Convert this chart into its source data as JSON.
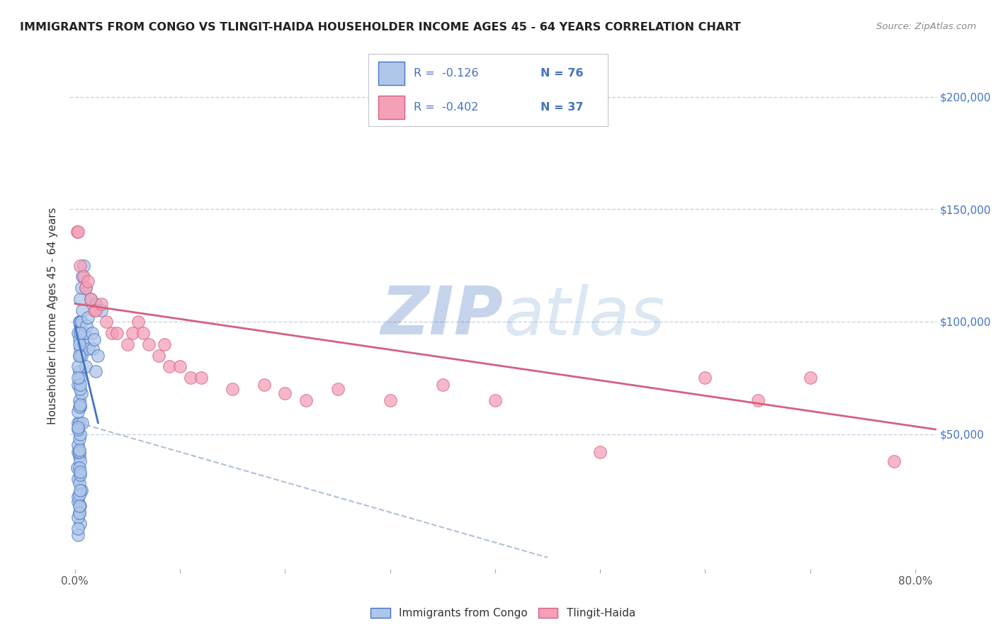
{
  "title": "IMMIGRANTS FROM CONGO VS TLINGIT-HAIDA HOUSEHOLDER INCOME AGES 45 - 64 YEARS CORRELATION CHART",
  "source": "Source: ZipAtlas.com",
  "ylabel": "Householder Income Ages 45 - 64 years",
  "y_tick_values": [
    50000,
    100000,
    150000,
    200000
  ],
  "legend_blue_label": "Immigrants from Congo",
  "legend_pink_label": "Tlingit-Haida",
  "blue_color": "#aec6e8",
  "pink_color": "#f4a0b8",
  "blue_line_color": "#4472c4",
  "pink_line_color": "#d46080",
  "dashed_line_color": "#b0c0d8",
  "watermark_color": "#c8d8ef",
  "background_color": "#ffffff",
  "xlim": [
    -0.005,
    0.82
  ],
  "ylim": [
    -10000,
    215000
  ],
  "blue_scatter_x": [
    0.002,
    0.003,
    0.003,
    0.003,
    0.003,
    0.003,
    0.004,
    0.004,
    0.004,
    0.004,
    0.004,
    0.004,
    0.004,
    0.004,
    0.005,
    0.005,
    0.005,
    0.005,
    0.005,
    0.005,
    0.005,
    0.006,
    0.006,
    0.006,
    0.006,
    0.007,
    0.007,
    0.007,
    0.008,
    0.008,
    0.009,
    0.01,
    0.01,
    0.011,
    0.012,
    0.013,
    0.015,
    0.016,
    0.017,
    0.018,
    0.02,
    0.02,
    0.022,
    0.025,
    0.005,
    0.003,
    0.004,
    0.006,
    0.004,
    0.003,
    0.005,
    0.004,
    0.003,
    0.005,
    0.003,
    0.004,
    0.003,
    0.005,
    0.004,
    0.003,
    0.004,
    0.005,
    0.003,
    0.004,
    0.005,
    0.004,
    0.003,
    0.005,
    0.003,
    0.004,
    0.005,
    0.003,
    0.004,
    0.005,
    0.003,
    0.004
  ],
  "blue_scatter_y": [
    35000,
    95000,
    72000,
    55000,
    45000,
    30000,
    100000,
    92000,
    85000,
    78000,
    65000,
    55000,
    48000,
    40000,
    110000,
    100000,
    88000,
    75000,
    62000,
    50000,
    38000,
    115000,
    100000,
    85000,
    68000,
    120000,
    105000,
    55000,
    125000,
    90000,
    95000,
    115000,
    80000,
    98000,
    102000,
    88000,
    110000,
    95000,
    88000,
    92000,
    108000,
    78000,
    85000,
    105000,
    10000,
    20000,
    15000,
    25000,
    35000,
    42000,
    18000,
    28000,
    60000,
    70000,
    80000,
    90000,
    22000,
    32000,
    42000,
    52000,
    62000,
    72000,
    13000,
    23000,
    33000,
    43000,
    53000,
    63000,
    5000,
    15000,
    25000,
    75000,
    85000,
    95000,
    8000,
    18000
  ],
  "pink_scatter_x": [
    0.002,
    0.003,
    0.005,
    0.008,
    0.01,
    0.012,
    0.015,
    0.018,
    0.02,
    0.025,
    0.03,
    0.035,
    0.04,
    0.05,
    0.055,
    0.06,
    0.065,
    0.07,
    0.08,
    0.085,
    0.09,
    0.1,
    0.11,
    0.12,
    0.15,
    0.18,
    0.2,
    0.22,
    0.25,
    0.3,
    0.35,
    0.4,
    0.5,
    0.6,
    0.65,
    0.7,
    0.78
  ],
  "pink_scatter_y": [
    140000,
    140000,
    125000,
    120000,
    115000,
    118000,
    110000,
    105000,
    105000,
    108000,
    100000,
    95000,
    95000,
    90000,
    95000,
    100000,
    95000,
    90000,
    85000,
    90000,
    80000,
    80000,
    75000,
    75000,
    70000,
    72000,
    68000,
    65000,
    70000,
    65000,
    72000,
    65000,
    42000,
    75000,
    65000,
    75000,
    38000
  ],
  "blue_line_x": [
    0.0,
    0.022
  ],
  "blue_line_y": [
    98000,
    55000
  ],
  "pink_line_x": [
    0.0,
    0.82
  ],
  "pink_line_y": [
    108000,
    52000
  ],
  "dashed_line_x": [
    0.003,
    0.45
  ],
  "dashed_line_y": [
    55000,
    -5000
  ]
}
